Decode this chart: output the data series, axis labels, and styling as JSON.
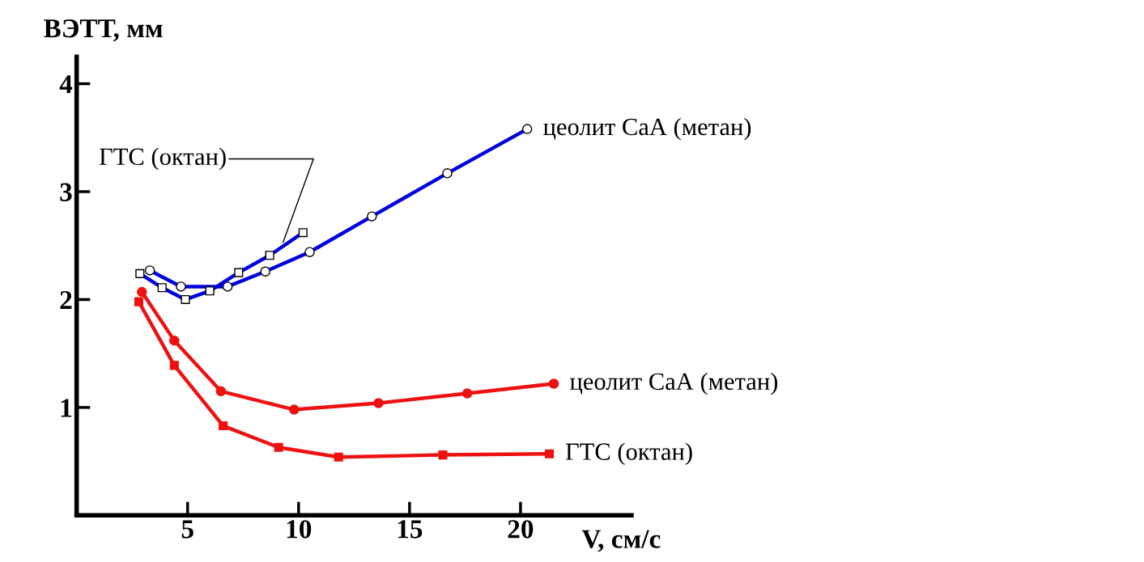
{
  "chart_data": {
    "type": "line",
    "ylabel": "ВЭТТ, мм",
    "xlabel": "V, см/с",
    "xlim": [
      0,
      25
    ],
    "ylim": [
      0,
      4.25
    ],
    "xticks": [
      5,
      10,
      15,
      20
    ],
    "yticks": [
      1,
      2,
      3,
      4
    ],
    "grid": false,
    "legend": false,
    "line_style": "solid",
    "series": [
      {
        "name": "цеолит СаА (метан)",
        "color": "#0000dd",
        "marker": "circle",
        "x": [
          3.3,
          4.7,
          6.8,
          8.5,
          10.5,
          13.3,
          16.7,
          20.3
        ],
        "values": [
          2.27,
          2.12,
          2.12,
          2.26,
          2.44,
          2.77,
          3.17,
          3.58
        ]
      },
      {
        "name": "ГТС (октан)",
        "color": "#0000dd",
        "marker": "square",
        "x": [
          2.85,
          3.85,
          4.9,
          6.0,
          7.3,
          8.7,
          10.2
        ],
        "values": [
          2.24,
          2.11,
          2.0,
          2.08,
          2.25,
          2.41,
          2.62
        ]
      },
      {
        "name": "цеолит СаА (метан)",
        "color": "#ee1111",
        "marker": "circle",
        "x": [
          2.94,
          4.4,
          6.5,
          9.8,
          13.6,
          17.6,
          21.5
        ],
        "values": [
          2.07,
          1.62,
          1.15,
          0.98,
          1.04,
          1.13,
          1.22
        ]
      },
      {
        "name": "ГТС (октан)",
        "color": "#ee1111",
        "marker": "square",
        "x": [
          2.8,
          4.4,
          6.6,
          9.1,
          11.8,
          16.5,
          21.3
        ],
        "values": [
          1.98,
          1.39,
          0.83,
          0.63,
          0.54,
          0.56,
          0.57
        ]
      }
    ]
  }
}
